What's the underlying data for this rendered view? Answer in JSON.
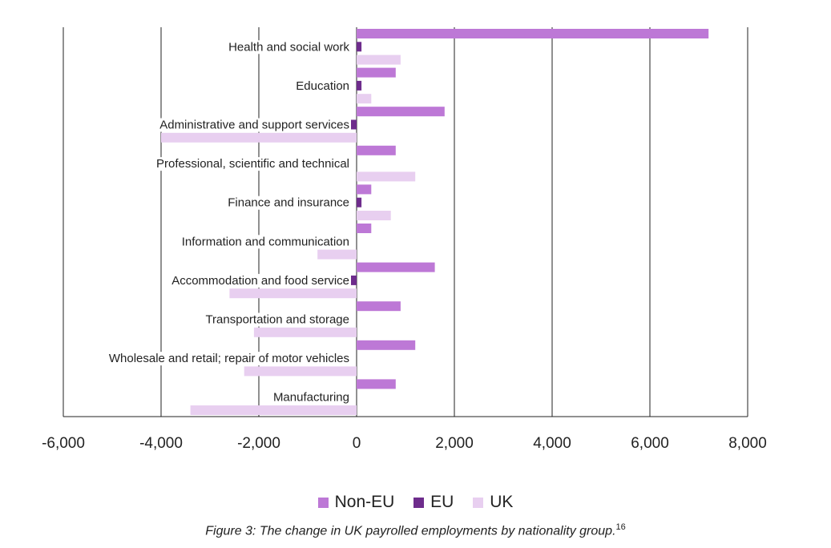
{
  "chart_data": {
    "type": "bar",
    "orientation": "horizontal",
    "categories": [
      "Health and social work",
      "Education",
      "Administrative and support services",
      "Professional, scientific and technical",
      "Finance and insurance",
      "Information and communication",
      "Accommodation and food service",
      "Transportation and storage",
      "Wholesale and retail; repair of motor vehicles",
      "Manufacturing"
    ],
    "series": [
      {
        "name": "Non-EU",
        "color": "#bd78d6",
        "values": [
          7200,
          800,
          1800,
          800,
          300,
          300,
          1600,
          900,
          1200,
          800
        ]
      },
      {
        "name": "EU",
        "color": "#6e2c8c",
        "values": [
          100,
          100,
          -400,
          0,
          100,
          0,
          -400,
          0,
          0,
          0
        ]
      },
      {
        "name": "UK",
        "color": "#e8cff0",
        "values": [
          900,
          300,
          -4000,
          1200,
          700,
          -800,
          -2600,
          -2100,
          -2300,
          -3400
        ]
      }
    ],
    "xlim": [
      -6000,
      8000
    ],
    "ticks": [
      -6000,
      -4000,
      -2000,
      0,
      2000,
      4000,
      6000,
      8000
    ],
    "tick_labels": [
      "-6,000",
      "-4,000",
      "-2,000",
      "0",
      "2,000",
      "4,000",
      "6,000",
      "8,000"
    ],
    "grid": "vertical",
    "legend_position": "bottom"
  },
  "caption": {
    "text": "Figure 3: The change in UK payrolled employments by nationality group.",
    "footnote": "16"
  }
}
